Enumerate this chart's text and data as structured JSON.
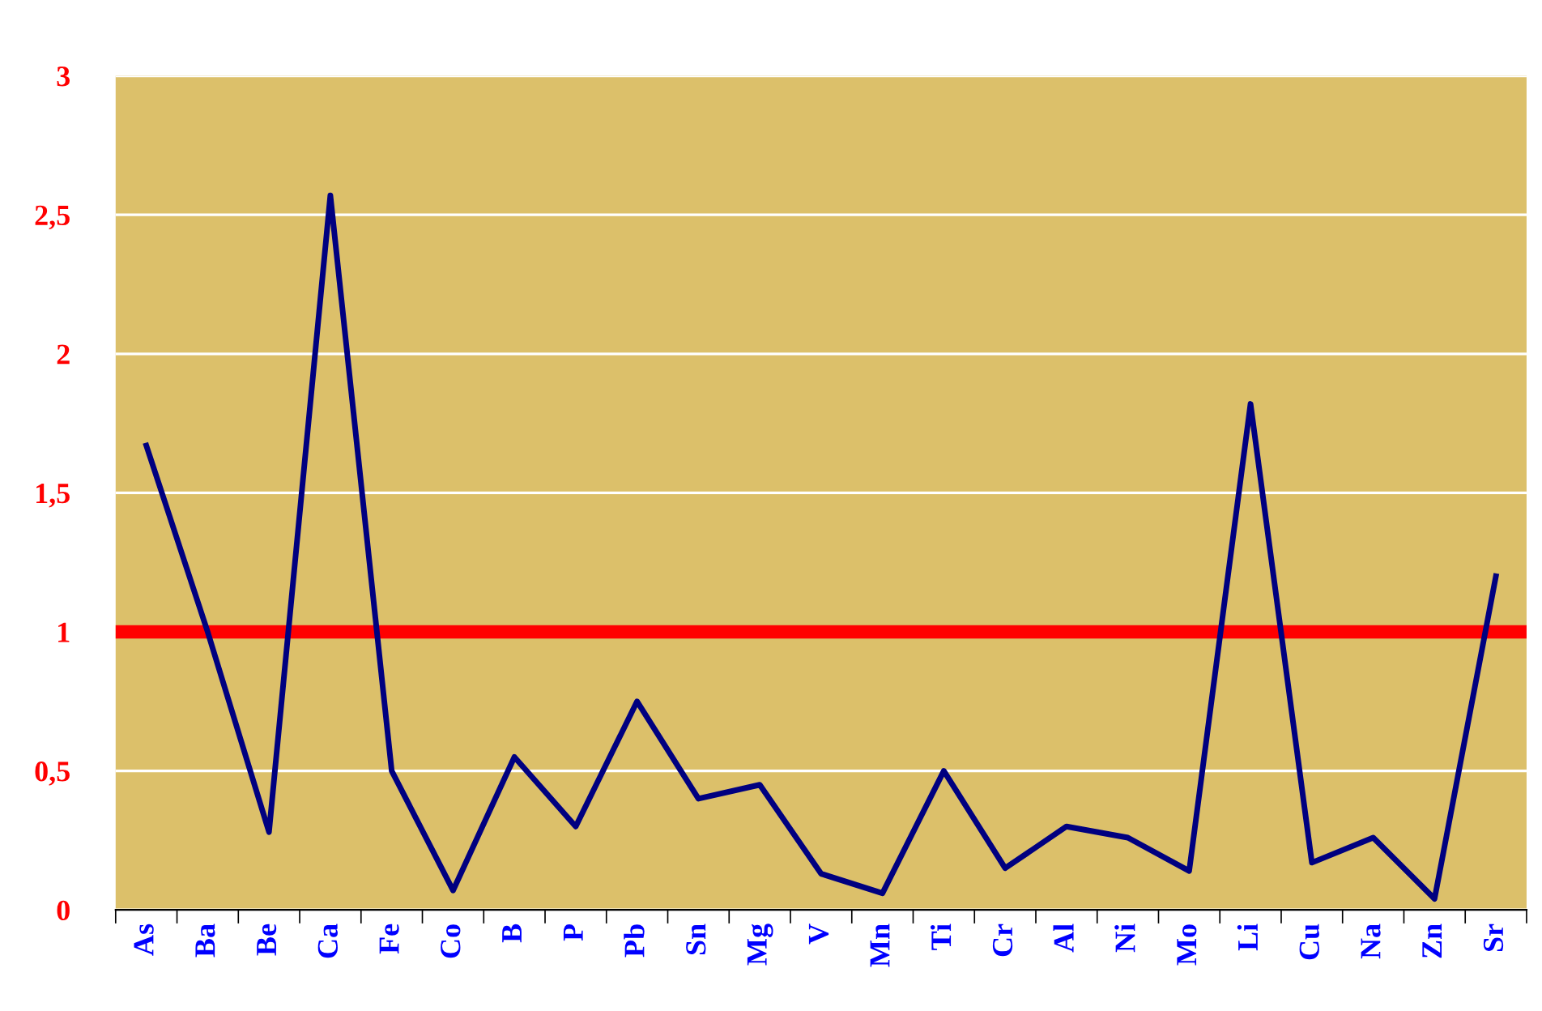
{
  "chart_data": {
    "type": "line",
    "categories": [
      "As",
      "Ba",
      "Be",
      "Ca",
      "Fe",
      "Co",
      "B",
      "P",
      "Pb",
      "Sn",
      "Mg",
      "V",
      "Mn",
      "Ti",
      "Cr",
      "Al",
      "Ni",
      "Mo",
      "Li",
      "Cu",
      "Na",
      "Zn",
      "Sr"
    ],
    "series": [
      {
        "color": "#000080",
        "values": [
          1.67,
          1.0,
          0.28,
          2.57,
          0.5,
          0.07,
          0.55,
          0.3,
          0.75,
          0.4,
          0.45,
          0.13,
          0.06,
          0.5,
          0.15,
          0.3,
          0.26,
          0.14,
          1.82,
          0.17,
          0.26,
          0.04,
          1.2
        ]
      }
    ],
    "ylim": [
      0,
      3
    ],
    "yticks": [
      0,
      {
        "value": 0.5,
        "label": "0,5"
      },
      1,
      {
        "value": 1.5,
        "label": "1,5"
      },
      2,
      {
        "value": 2.5,
        "label": "2,5"
      },
      3
    ],
    "ref_lines": [
      {
        "axis": "y",
        "value": 1,
        "color": "#ff0000"
      }
    ],
    "grid": "y",
    "marker": "none",
    "line_style": "solid"
  }
}
